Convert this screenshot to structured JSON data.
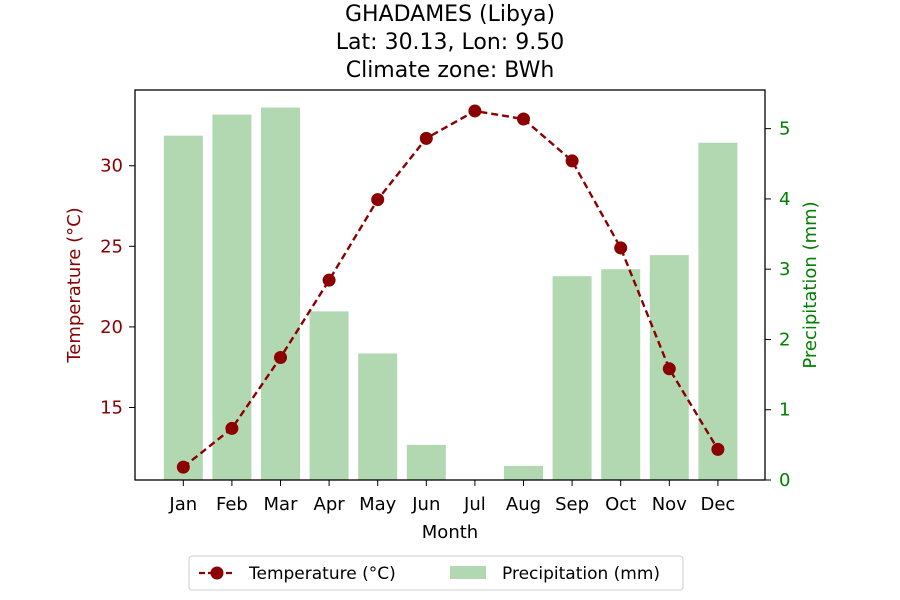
{
  "chart_data": {
    "type": "bar+line",
    "title_lines": [
      "GHADAMES (Libya)",
      "Lat: 30.13, Lon: 9.50",
      "Climate zone: BWh"
    ],
    "xlabel": "Month",
    "ylabel_left": "Temperature (°C)",
    "ylabel_right": "Precipitation (mm)",
    "categories": [
      "Jan",
      "Feb",
      "Mar",
      "Apr",
      "May",
      "Jun",
      "Jul",
      "Aug",
      "Sep",
      "Oct",
      "Nov",
      "Dec"
    ],
    "series": [
      {
        "name": "Temperature (°C)",
        "type": "line",
        "axis": "left",
        "values": [
          11.3,
          13.7,
          18.1,
          22.9,
          27.9,
          31.7,
          33.4,
          32.9,
          30.3,
          24.9,
          17.4,
          12.4
        ]
      },
      {
        "name": "Precipitation (mm)",
        "type": "bar",
        "axis": "right",
        "values": [
          4.9,
          5.2,
          5.3,
          2.4,
          1.8,
          0.5,
          0.0,
          0.2,
          2.9,
          3.0,
          3.2,
          4.8
        ]
      }
    ],
    "ylim_left": [
      10.5,
      34.7
    ],
    "yticks_left": [
      15,
      20,
      25,
      30
    ],
    "ylim_right": [
      0,
      5.55
    ],
    "yticks_right": [
      0,
      1,
      2,
      3,
      4,
      5
    ],
    "grid": false,
    "legend_position": "bottom-center",
    "colors": {
      "temperature": "#8b0000",
      "precipitation": "#b2d8b2",
      "left_axis_text": "#8b0000",
      "right_axis_text": "#008000"
    }
  }
}
